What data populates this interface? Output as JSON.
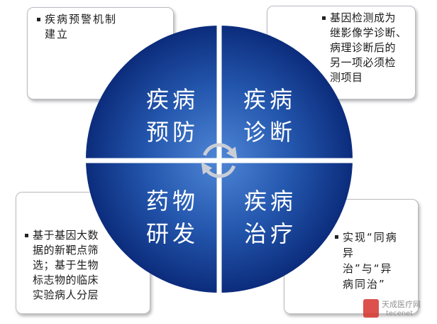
{
  "diagram": {
    "quadrants": [
      {
        "lines": [
          "疾病",
          "预防"
        ]
      },
      {
        "lines": [
          "疾病",
          "诊断"
        ]
      },
      {
        "lines": [
          "药物",
          "研发"
        ]
      },
      {
        "lines": [
          "疾病",
          "治疗"
        ]
      }
    ],
    "center_icon": "cycle-arrows-icon",
    "colors": {
      "quadrant_center": "#4f86d6",
      "quadrant_mid": "#2356ad",
      "quadrant_edge": "#0c2c7c",
      "label_text": "#ffffff",
      "arrows": "#c9ced6"
    }
  },
  "callouts": [
    {
      "lines": [
        "疾病预警机制",
        "建立"
      ]
    },
    {
      "lines": [
        "基因检测成为",
        "继影像学诊断、",
        "病理诊断后的",
        "另一项必须检",
        "测项目"
      ]
    },
    {
      "lines": [
        "基于基因大数",
        "据的新靶点筛",
        "选；基于生物",
        "标志物的临床",
        "实验病人分层"
      ]
    },
    {
      "lines": [
        "实现“同病",
        "异",
        "治”与“异",
        "病同治”"
      ]
    }
  ],
  "callout_bullet_icon": "square-bullet-icon",
  "watermark": {
    "name": "天成医疗网",
    "site": "tecenet",
    "icon": "logo-icon",
    "icon_color": "#d6322c"
  }
}
